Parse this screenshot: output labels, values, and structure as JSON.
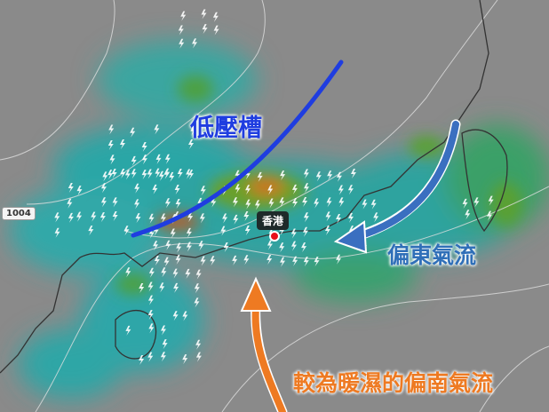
{
  "map": {
    "annotations": {
      "trough": "低壓槽",
      "easterly_flow": "偏東氣流",
      "southerly_flow": "較為暖濕的偏南氣流"
    },
    "location_label": "香港",
    "isobar_label": "1004",
    "colors": {
      "trough_line": "#1f3de0",
      "easterly_arrow": "#3a6fc0",
      "southerly_arrow": "#ee7a22",
      "location_marker": "#e8101a",
      "background": "#8a8a8a"
    },
    "icons": [
      "lightning-icon",
      "location-marker-icon"
    ]
  }
}
